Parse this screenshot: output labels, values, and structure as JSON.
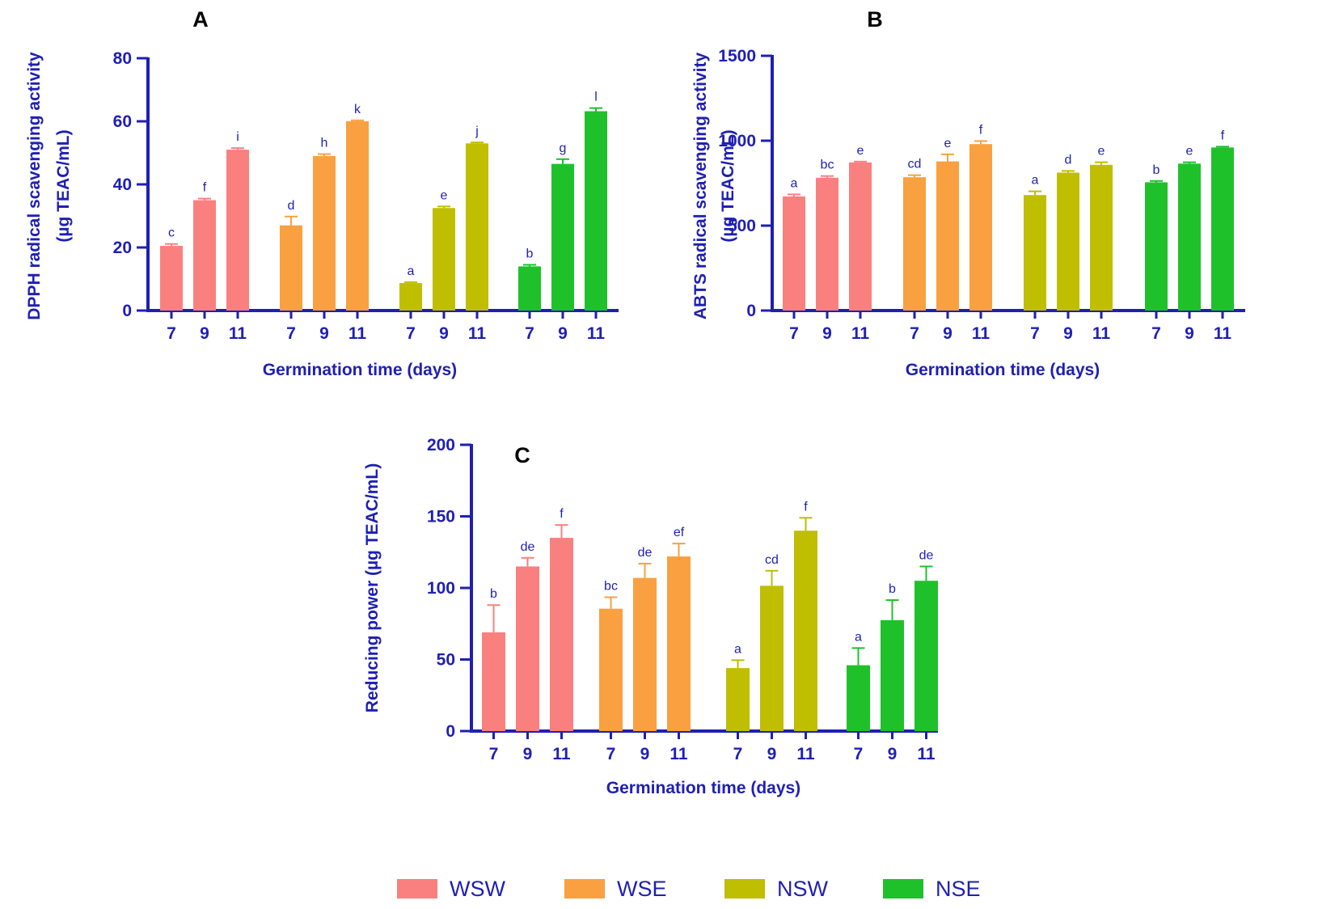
{
  "chart_data": [
    {
      "panel": "A",
      "type": "bar",
      "ylabel_line1": "DPPH radical scavenging activity",
      "ylabel_line2": "(µg TEAC/mL)",
      "xlabel": "Germination time (days)",
      "ylim": [
        0,
        80
      ],
      "yticks": [
        "0",
        "20",
        "40",
        "60",
        "80"
      ],
      "categories": [
        "7",
        "9",
        "11"
      ],
      "series": [
        {
          "name": "WSW",
          "values": [
            20.5,
            35,
            51
          ],
          "errors": [
            0.6,
            0.5,
            0.5
          ],
          "labels": [
            "c",
            "f",
            "i"
          ]
        },
        {
          "name": "WSE",
          "values": [
            27,
            49,
            60
          ],
          "errors": [
            2.8,
            0.6,
            0.3
          ],
          "labels": [
            "d",
            "h",
            "k"
          ]
        },
        {
          "name": "NSW",
          "values": [
            8.7,
            32.5,
            53
          ],
          "errors": [
            0.3,
            0.5,
            0.3
          ],
          "labels": [
            "a",
            "e",
            "j"
          ]
        },
        {
          "name": "NSE",
          "values": [
            14,
            46.5,
            63.2
          ],
          "errors": [
            0.5,
            1.5,
            1.0
          ],
          "labels": [
            "b",
            "g",
            "l"
          ]
        }
      ]
    },
    {
      "panel": "B",
      "type": "bar",
      "ylabel_line1": "ABTS radical scavenging activity",
      "ylabel_line2": "(µg TEAC/mL)",
      "xlabel": "Germination time (days)",
      "ylim": [
        0,
        1500
      ],
      "yticks": [
        "0",
        "500",
        "1000",
        "1500"
      ],
      "categories": [
        "7",
        "9",
        "11"
      ],
      "series": [
        {
          "name": "WSW",
          "values": [
            672,
            782,
            872
          ],
          "errors": [
            12,
            10,
            5
          ],
          "labels": [
            "a",
            "bc",
            "e"
          ]
        },
        {
          "name": "WSE",
          "values": [
            785,
            878,
            980
          ],
          "errors": [
            12,
            42,
            18
          ],
          "labels": [
            "cd",
            "e",
            "f"
          ]
        },
        {
          "name": "NSW",
          "values": [
            680,
            812,
            858
          ],
          "errors": [
            22,
            10,
            15
          ],
          "labels": [
            "a",
            "d",
            "e"
          ]
        },
        {
          "name": "NSE",
          "values": [
            755,
            865,
            960
          ],
          "errors": [
            8,
            8,
            5
          ],
          "labels": [
            "b",
            "e",
            "f"
          ]
        }
      ]
    },
    {
      "panel": "C",
      "type": "bar",
      "ylabel_line1": "Reducing power (µg TEAC/mL)",
      "ylabel_line2": "",
      "xlabel": "Germination time (days)",
      "ylim": [
        0,
        200
      ],
      "yticks": [
        "0",
        "50",
        "100",
        "150",
        "200"
      ],
      "categories": [
        "7",
        "9",
        "11"
      ],
      "series": [
        {
          "name": "WSW",
          "values": [
            69,
            115,
            135
          ],
          "errors": [
            19,
            6,
            9
          ],
          "labels": [
            "b",
            "de",
            "f"
          ]
        },
        {
          "name": "WSE",
          "values": [
            85.5,
            107,
            122
          ],
          "errors": [
            8,
            10,
            9
          ],
          "labels": [
            "bc",
            "de",
            "ef"
          ]
        },
        {
          "name": "NSW",
          "values": [
            44,
            101.5,
            140
          ],
          "errors": [
            5.5,
            10.5,
            9
          ],
          "labels": [
            "a",
            "cd",
            "f"
          ]
        },
        {
          "name": "NSE",
          "values": [
            46,
            77.5,
            105
          ],
          "errors": [
            12,
            14,
            10
          ],
          "labels": [
            "a",
            "b",
            "de"
          ]
        }
      ]
    }
  ],
  "legend": [
    {
      "name": "WSW",
      "color": "#fa8080"
    },
    {
      "name": "WSE",
      "color": "#f9a040"
    },
    {
      "name": "NSW",
      "color": "#bfbe00"
    },
    {
      "name": "NSE",
      "color": "#1fc12a"
    }
  ],
  "colors": {
    "axis": "#1f1fb4",
    "text": "#1f1fb4"
  }
}
